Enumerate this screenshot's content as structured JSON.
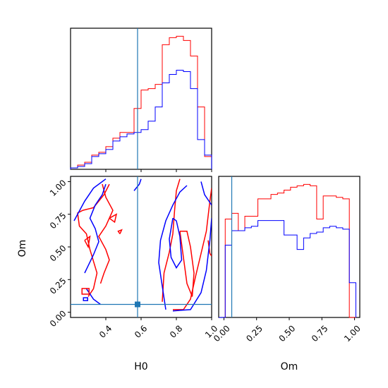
{
  "chart_data": {
    "type": "corner",
    "parameters": [
      "H0",
      "Om"
    ],
    "truth": {
      "H0": 0.58,
      "Om": 0.06
    },
    "colors": {
      "run_a": "#ff0000",
      "run_b": "#0000ff",
      "truth": "#1f77b4"
    },
    "axes": {
      "H0": {
        "range": [
          0.2,
          1.0
        ],
        "ticks": [
          0.4,
          0.6,
          0.8,
          1.0
        ],
        "tick_labels": [
          "0.4",
          "0.6",
          "0.8",
          "1.0"
        ],
        "label": "H0"
      },
      "Om": {
        "range": [
          -0.04,
          1.04
        ],
        "ticks": [
          0.0,
          0.25,
          0.5,
          0.75,
          1.0
        ],
        "tick_labels": [
          "0.00",
          "0.25",
          "0.50",
          "0.75",
          "1.00"
        ],
        "label": "Om"
      }
    },
    "hist_H0": {
      "bin_edges": [
        0.2,
        0.24,
        0.28,
        0.32,
        0.36,
        0.4,
        0.44,
        0.48,
        0.52,
        0.56,
        0.6,
        0.64,
        0.68,
        0.72,
        0.76,
        0.8,
        0.84,
        0.88,
        0.92,
        0.96,
        1.0
      ],
      "series": [
        {
          "values": [
            1,
            3,
            5,
            10,
            12,
            16,
            22,
            26,
            26,
            43,
            56,
            57,
            60,
            88,
            93,
            94,
            91,
            80,
            44,
            9
          ]
        },
        {
          "values": [
            1,
            2,
            4,
            9,
            11,
            14,
            20,
            23,
            25,
            26,
            28,
            34,
            44,
            61,
            67,
            70,
            69,
            57,
            21,
            10
          ]
        }
      ]
    },
    "hist_Om": {
      "bin_edges": [
        -0.04,
        0.01,
        0.06,
        0.11,
        0.16,
        0.21,
        0.26,
        0.31,
        0.36,
        0.41,
        0.46,
        0.51,
        0.56,
        0.61,
        0.66,
        0.71,
        0.76,
        0.81,
        0.86,
        0.91,
        0.96,
        1.01
      ],
      "series": [
        {
          "values": [
            0,
            68,
            72,
            60,
            70,
            70,
            82,
            82,
            85,
            86,
            88,
            90,
            91,
            92,
            91,
            68,
            84,
            84,
            83,
            82,
            0
          ]
        },
        {
          "values": [
            0,
            50,
            60,
            60,
            62,
            63,
            67,
            67,
            67,
            67,
            57,
            57,
            47,
            55,
            58,
            59,
            62,
            63,
            62,
            61,
            24
          ]
        }
      ]
    },
    "contours": {
      "series": [
        {
          "lines": [
            [
              [
                0.78,
                0.02
              ],
              [
                0.84,
                0.02
              ],
              [
                0.88,
                0.1
              ],
              [
                0.91,
                0.28
              ],
              [
                0.94,
                0.45
              ],
              [
                0.97,
                0.62
              ],
              [
                0.99,
                0.85
              ],
              [
                1.0,
                0.95
              ]
            ],
            [
              [
                0.72,
                0.08
              ],
              [
                0.73,
                0.3
              ],
              [
                0.76,
                0.46
              ],
              [
                0.78,
                0.6
              ],
              [
                0.79,
                0.78
              ],
              [
                0.8,
                0.93
              ],
              [
                0.82,
                1.02
              ]
            ],
            [
              [
                0.82,
                0.62
              ],
              [
                0.84,
                0.42
              ],
              [
                0.86,
                0.22
              ],
              [
                0.89,
                0.12
              ],
              [
                0.9,
                0.3
              ],
              [
                0.88,
                0.5
              ],
              [
                0.86,
                0.62
              ],
              [
                0.82,
                0.62
              ]
            ],
            [
              [
                0.98,
                0.55
              ],
              [
                0.99,
                0.45
              ],
              [
                1.0,
                0.43
              ]
            ],
            [
              [
                0.42,
                0.98
              ],
              [
                0.39,
                0.9
              ],
              [
                0.33,
                0.8
              ],
              [
                0.27,
                0.78
              ],
              [
                0.24,
                0.76
              ],
              [
                0.25,
                0.66
              ],
              [
                0.29,
                0.6
              ],
              [
                0.31,
                0.48
              ],
              [
                0.35,
                0.3
              ],
              [
                0.33,
                0.18
              ],
              [
                0.3,
                0.12
              ]
            ],
            [
              [
                0.38,
                0.98
              ],
              [
                0.4,
                0.88
              ],
              [
                0.44,
                0.78
              ],
              [
                0.4,
                0.66
              ],
              [
                0.36,
                0.58
              ],
              [
                0.4,
                0.48
              ],
              [
                0.42,
                0.4
              ],
              [
                0.39,
                0.3
              ],
              [
                0.37,
                0.22
              ]
            ],
            [
              [
                0.28,
                0.55
              ],
              [
                0.31,
                0.58
              ],
              [
                0.3,
                0.5
              ],
              [
                0.28,
                0.55
              ]
            ],
            [
              [
                0.42,
                0.72
              ],
              [
                0.46,
                0.75
              ],
              [
                0.45,
                0.69
              ],
              [
                0.42,
                0.72
              ]
            ],
            [
              [
                0.48,
                0.6
              ],
              [
                0.49,
                0.63
              ],
              [
                0.47,
                0.62
              ],
              [
                0.48,
                0.6
              ]
            ]
          ]
        },
        {
          "lines": [
            [
              [
                0.78,
                0.01
              ],
              [
                0.88,
                0.02
              ],
              [
                0.94,
                0.15
              ],
              [
                0.97,
                0.32
              ],
              [
                0.99,
                0.55
              ],
              [
                1.0,
                0.72
              ]
            ],
            [
              [
                0.74,
                0.02
              ],
              [
                0.72,
                0.2
              ],
              [
                0.7,
                0.38
              ],
              [
                0.71,
                0.55
              ],
              [
                0.74,
                0.7
              ],
              [
                0.78,
                0.82
              ],
              [
                0.82,
                0.92
              ],
              [
                0.86,
                0.97
              ]
            ],
            [
              [
                0.78,
                0.72
              ],
              [
                0.76,
                0.56
              ],
              [
                0.77,
                0.42
              ],
              [
                0.8,
                0.34
              ],
              [
                0.83,
                0.4
              ],
              [
                0.82,
                0.58
              ],
              [
                0.8,
                0.7
              ],
              [
                0.78,
                0.72
              ]
            ],
            [
              [
                0.94,
                1.0
              ],
              [
                0.96,
                0.9
              ],
              [
                0.99,
                0.84
              ],
              [
                1.0,
                0.82
              ]
            ],
            [
              [
                0.22,
                0.7
              ],
              [
                0.28,
                0.85
              ],
              [
                0.33,
                0.95
              ],
              [
                0.4,
                1.02
              ]
            ],
            [
              [
                0.28,
                0.3
              ],
              [
                0.33,
                0.44
              ],
              [
                0.36,
                0.54
              ],
              [
                0.34,
                0.64
              ],
              [
                0.31,
                0.72
              ],
              [
                0.34,
                0.82
              ],
              [
                0.38,
                0.9
              ],
              [
                0.4,
                0.98
              ]
            ],
            [
              [
                0.29,
                0.18
              ],
              [
                0.33,
                0.1
              ],
              [
                0.37,
                0.06
              ]
            ],
            [
              [
                0.56,
                0.93
              ],
              [
                0.59,
                0.98
              ],
              [
                0.6,
                1.02
              ]
            ]
          ]
        }
      ]
    }
  }
}
